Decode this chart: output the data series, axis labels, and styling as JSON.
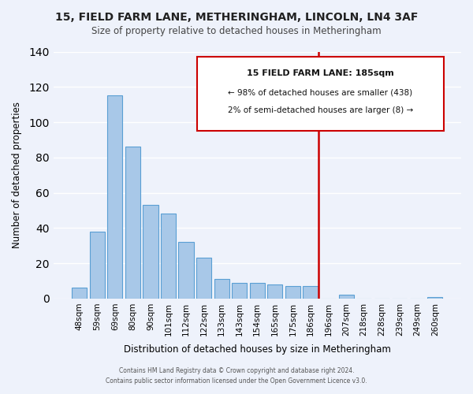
{
  "title": "15, FIELD FARM LANE, METHERINGHAM, LINCOLN, LN4 3AF",
  "subtitle": "Size of property relative to detached houses in Metheringham",
  "xlabel": "Distribution of detached houses by size in Metheringham",
  "ylabel": "Number of detached properties",
  "bar_labels": [
    "48sqm",
    "59sqm",
    "69sqm",
    "80sqm",
    "90sqm",
    "101sqm",
    "112sqm",
    "122sqm",
    "133sqm",
    "143sqm",
    "154sqm",
    "165sqm",
    "175sqm",
    "186sqm",
    "196sqm",
    "207sqm",
    "218sqm",
    "228sqm",
    "239sqm",
    "249sqm",
    "260sqm"
  ],
  "bar_values": [
    6,
    38,
    115,
    86,
    53,
    48,
    32,
    23,
    11,
    9,
    9,
    8,
    7,
    7,
    0,
    2,
    0,
    0,
    0,
    0,
    1
  ],
  "bar_color": "#a8c8e8",
  "bar_edge_color": "#5a9fd4",
  "vline_x": 13.43,
  "vline_color": "#cc0000",
  "ylim": [
    0,
    140
  ],
  "yticks": [
    0,
    20,
    40,
    60,
    80,
    100,
    120,
    140
  ],
  "annotation_box_title": "15 FIELD FARM LANE: 185sqm",
  "annotation_line1": "← 98% of detached houses are smaller (438)",
  "annotation_line2": "2% of semi-detached houses are larger (8) →",
  "annotation_box_color": "#ffffff",
  "annotation_box_edge": "#cc0000",
  "footer_line1": "Contains HM Land Registry data © Crown copyright and database right 2024.",
  "footer_line2": "Contains public sector information licensed under the Open Government Licence v3.0.",
  "background_color": "#eef2fb",
  "grid_color": "#ffffff"
}
